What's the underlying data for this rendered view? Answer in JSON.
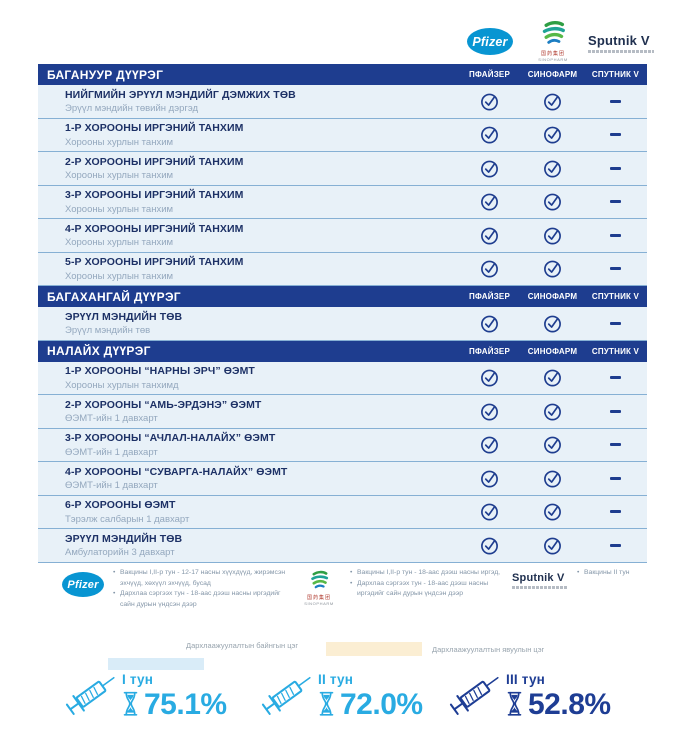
{
  "columns": [
    "ПФАЙЗЕР",
    "СИНОФАРМ",
    "СПУТНИК V"
  ],
  "logos": {
    "pfizer": "Pfizer",
    "sinopharm_cn": "国药集团",
    "sinopharm_en": "SINOPHARM",
    "sputnik": "Sputnik V"
  },
  "sections": [
    {
      "name": "БАГАНУУР ДҮҮРЭГ",
      "rows": [
        {
          "title": "НИЙГМИЙН ЭРҮҮЛ МЭНДИЙГ ДЭМЖИХ ТӨВ",
          "subtitle": "Эрүүл мэндийн төвийн дэргэд",
          "pfizer": true,
          "sinopharm": true,
          "sputnik": false
        },
        {
          "title": "1-Р ХОРООНЫ ИРГЭНИЙ ТАНХИМ",
          "subtitle": "Хорооны хурлын танхим",
          "pfizer": true,
          "sinopharm": true,
          "sputnik": false
        },
        {
          "title": "2-Р ХОРООНЫ ИРГЭНИЙ ТАНХИМ",
          "subtitle": "Хорооны хурлын танхим",
          "pfizer": true,
          "sinopharm": true,
          "sputnik": false
        },
        {
          "title": "3-Р ХОРООНЫ ИРГЭНИЙ ТАНХИМ",
          "subtitle": "Хорооны хурлын танхим",
          "pfizer": true,
          "sinopharm": true,
          "sputnik": false
        },
        {
          "title": "4-Р ХОРООНЫ ИРГЭНИЙ ТАНХИМ",
          "subtitle": "Хорооны хурлын танхим",
          "pfizer": true,
          "sinopharm": true,
          "sputnik": false
        },
        {
          "title": "5-Р ХОРООНЫ ИРГЭНИЙ ТАНХИМ",
          "subtitle": "Хорооны хурлын танхим",
          "pfizer": true,
          "sinopharm": true,
          "sputnik": false
        }
      ]
    },
    {
      "name": "БАГАХАНГАЙ ДҮҮРЭГ",
      "rows": [
        {
          "title": "ЭРҮҮЛ МЭНДИЙН ТӨВ",
          "subtitle": "Эрүүл мэндийн төв",
          "pfizer": true,
          "sinopharm": true,
          "sputnik": false
        }
      ]
    },
    {
      "name": "НАЛАЙХ ДҮҮРЭГ",
      "rows": [
        {
          "title": "1-Р ХОРООНЫ “НАРНЫ ЭРЧ” ӨЭМТ",
          "subtitle": "Хорооны хурлын танхимд",
          "pfizer": true,
          "sinopharm": true,
          "sputnik": false
        },
        {
          "title": "2-Р ХОРООНЫ “АМЬ-ЭРДЭНЭ” ӨЭМТ",
          "subtitle": "ӨЭМТ-ийн 1 давхарт",
          "pfizer": true,
          "sinopharm": true,
          "sputnik": false
        },
        {
          "title": "3-Р ХОРООНЫ “АЧЛАЛ-НАЛАЙХ” ӨЭМТ",
          "subtitle": "ӨЭМТ-ийн 1 давхарт",
          "pfizer": true,
          "sinopharm": true,
          "sputnik": false
        },
        {
          "title": "4-Р ХОРООНЫ “СУВАРГА-НАЛАЙХ” ӨЭМТ",
          "subtitle": "ӨЭМТ-ийн 1 давхарт",
          "pfizer": true,
          "sinopharm": true,
          "sputnik": false
        },
        {
          "title": "6-Р ХОРООНЫ ӨЭМТ",
          "subtitle": "Тэрэлж салбарын 1 давхарт",
          "pfizer": true,
          "sinopharm": true,
          "sputnik": false
        },
        {
          "title": "ЭРҮҮЛ МЭНДИЙН ТӨВ",
          "subtitle": "Амбулаторийн 3 давхарт",
          "pfizer": true,
          "sinopharm": true,
          "sputnik": false
        }
      ]
    }
  ],
  "footnotes": {
    "pfizer": [
      "Вакцины I,II-р тун - 12-17 насны хүүхдүүд, жирэмсэн эхчүүд, хөхүүл эхчүүд, бусад",
      "Дархлаа сэргээх тун - 18-аас дээш насны иргэдийг сайн дурын үндсэн дээр"
    ],
    "sinopharm": [
      "Вакцины I,II-р тун - 18-аас дээш насны иргэд,",
      "Дархлаа сэргээх тун - 18-аас дээш насны иргэдийг сайн дурын үндсэн дээр"
    ],
    "sputnik": [
      "Вакцины II тун"
    ]
  },
  "point_legend": [
    {
      "label": "Дархлаажуулалтын байнгын цэг",
      "color": "#d9ecf8"
    },
    {
      "label": "Дархлаажуулалтын явуулын цэг",
      "color": "#fbeed3"
    }
  ],
  "stats": [
    {
      "dose": "I тун",
      "percent": "75.1%",
      "color": "#29abe2"
    },
    {
      "dose": "II тун",
      "percent": "72.0%",
      "color": "#29abe2"
    },
    {
      "dose": "III тун",
      "percent": "52.8%",
      "color": "#1e3d94"
    }
  ],
  "colors": {
    "header_bg": "#1e3d8f",
    "row_bg": "#e8f1f8",
    "check": "#1e3d8f",
    "pfizer_blue": "#0895d2"
  }
}
